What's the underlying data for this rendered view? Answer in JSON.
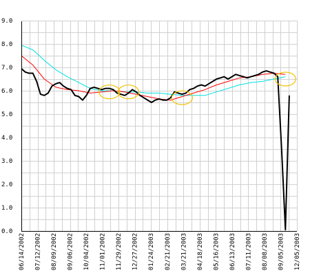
{
  "chart_data": {
    "type": "line",
    "title": "",
    "xlabel": "",
    "ylabel": "",
    "x_tick_labels": [
      "06/14/2002",
      "07/12/2002",
      "08/09/2002",
      "09/06/2002",
      "10/04/2002",
      "11/01/2002",
      "11/29/2002",
      "12/27/2002",
      "01/24/2003",
      "02/21/2003",
      "03/21/2003",
      "04/18/2003",
      "05/16/2003",
      "06/13/2003",
      "07/11/2003",
      "08/08/2003",
      "09/05/2003",
      "12/05/2003"
    ],
    "y_tick_labels": [
      "0.0",
      "1.0",
      "2.0",
      "3.0",
      "4.0",
      "5.0",
      "6.0",
      "7.0",
      "8.0",
      "9.0"
    ],
    "ylim": [
      0,
      9
    ],
    "xlim": [
      "06/14/2002",
      "10/31/2003"
    ],
    "grid": true,
    "legend": "none",
    "series": [
      {
        "color": "#000000",
        "points": [
          [
            "06/14/2002",
            6.95
          ],
          [
            "06/21/2002",
            6.8
          ],
          [
            "06/28/2002",
            6.75
          ],
          [
            "07/05/2002",
            6.75
          ],
          [
            "07/12/2002",
            6.4
          ],
          [
            "07/19/2002",
            5.85
          ],
          [
            "07/26/2002",
            5.8
          ],
          [
            "08/02/2002",
            5.9
          ],
          [
            "08/09/2002",
            6.2
          ],
          [
            "08/16/2002",
            6.3
          ],
          [
            "08/23/2002",
            6.35
          ],
          [
            "08/30/2002",
            6.2
          ],
          [
            "09/06/2002",
            6.1
          ],
          [
            "09/13/2002",
            6.05
          ],
          [
            "09/20/2002",
            5.8
          ],
          [
            "09/27/2002",
            5.75
          ],
          [
            "10/04/2002",
            5.6
          ],
          [
            "10/11/2002",
            5.8
          ],
          [
            "10/18/2002",
            6.1
          ],
          [
            "10/25/2002",
            6.15
          ],
          [
            "11/01/2002",
            6.1
          ],
          [
            "11/08/2002",
            6.05
          ],
          [
            "11/15/2002",
            6.1
          ],
          [
            "11/22/2002",
            6.1
          ],
          [
            "11/29/2002",
            6.05
          ],
          [
            "12/06/2002",
            5.9
          ],
          [
            "12/13/2002",
            5.85
          ],
          [
            "12/20/2002",
            5.8
          ],
          [
            "12/27/2002",
            5.9
          ],
          [
            "01/03/2003",
            6.05
          ],
          [
            "01/10/2003",
            5.95
          ],
          [
            "01/17/2003",
            5.8
          ],
          [
            "01/24/2003",
            5.7
          ],
          [
            "01/31/2003",
            5.6
          ],
          [
            "02/07/2003",
            5.5
          ],
          [
            "02/14/2003",
            5.6
          ],
          [
            "02/21/2003",
            5.65
          ],
          [
            "02/28/2003",
            5.6
          ],
          [
            "03/07/2003",
            5.6
          ],
          [
            "03/14/2003",
            5.7
          ],
          [
            "03/21/2003",
            5.95
          ],
          [
            "03/28/2003",
            5.9
          ],
          [
            "04/04/2003",
            5.85
          ],
          [
            "04/11/2003",
            5.9
          ],
          [
            "04/18/2003",
            6.05
          ],
          [
            "04/25/2003",
            6.1
          ],
          [
            "05/02/2003",
            6.2
          ],
          [
            "05/09/2003",
            6.25
          ],
          [
            "05/16/2003",
            6.2
          ],
          [
            "05/23/2003",
            6.3
          ],
          [
            "05/30/2003",
            6.4
          ],
          [
            "06/06/2003",
            6.5
          ],
          [
            "06/13/2003",
            6.55
          ],
          [
            "06/20/2003",
            6.6
          ],
          [
            "06/27/2003",
            6.5
          ],
          [
            "07/04/2003",
            6.6
          ],
          [
            "07/11/2003",
            6.7
          ],
          [
            "07/18/2003",
            6.65
          ],
          [
            "07/25/2003",
            6.6
          ],
          [
            "08/01/2003",
            6.55
          ],
          [
            "08/08/2003",
            6.6
          ],
          [
            "08/15/2003",
            6.65
          ],
          [
            "08/22/2003",
            6.7
          ],
          [
            "08/29/2003",
            6.8
          ],
          [
            "09/05/2003",
            6.85
          ],
          [
            "09/12/2003",
            6.8
          ],
          [
            "09/19/2003",
            6.75
          ],
          [
            "09/26/2003",
            6.6
          ],
          [
            "10/03/2003",
            3.5
          ],
          [
            "10/10/2003",
            0.05
          ],
          [
            "10/17/2003",
            5.8
          ]
        ]
      },
      {
        "color": "#ff0000",
        "points": [
          [
            "06/14/2002",
            7.5
          ],
          [
            "07/05/2002",
            7.1
          ],
          [
            "07/26/2002",
            6.5
          ],
          [
            "08/16/2002",
            6.15
          ],
          [
            "09/06/2002",
            6.05
          ],
          [
            "09/27/2002",
            6.0
          ],
          [
            "10/18/2002",
            5.9
          ],
          [
            "11/08/2002",
            5.95
          ],
          [
            "11/29/2002",
            6.0
          ],
          [
            "12/20/2002",
            5.95
          ],
          [
            "01/10/2003",
            5.85
          ],
          [
            "01/31/2003",
            5.75
          ],
          [
            "02/21/2003",
            5.65
          ],
          [
            "03/14/2003",
            5.6
          ],
          [
            "04/04/2003",
            5.75
          ],
          [
            "04/25/2003",
            5.9
          ],
          [
            "05/16/2003",
            6.05
          ],
          [
            "06/06/2003",
            6.25
          ],
          [
            "06/27/2003",
            6.4
          ],
          [
            "07/18/2003",
            6.55
          ],
          [
            "08/08/2003",
            6.6
          ],
          [
            "08/29/2003",
            6.7
          ],
          [
            "09/19/2003",
            6.75
          ],
          [
            "10/10/2003",
            6.7
          ]
        ]
      },
      {
        "color": "#00e0e0",
        "points": [
          [
            "06/14/2002",
            7.95
          ],
          [
            "07/05/2002",
            7.75
          ],
          [
            "07/26/2002",
            7.3
          ],
          [
            "08/16/2002",
            6.9
          ],
          [
            "09/06/2002",
            6.6
          ],
          [
            "09/27/2002",
            6.35
          ],
          [
            "10/18/2002",
            6.1
          ],
          [
            "11/08/2002",
            6.0
          ],
          [
            "11/29/2002",
            6.0
          ],
          [
            "12/20/2002",
            5.95
          ],
          [
            "01/10/2003",
            5.95
          ],
          [
            "01/31/2003",
            5.9
          ],
          [
            "02/21/2003",
            5.9
          ],
          [
            "03/14/2003",
            5.85
          ],
          [
            "04/04/2003",
            5.8
          ],
          [
            "04/25/2003",
            5.8
          ],
          [
            "05/16/2003",
            5.8
          ],
          [
            "06/06/2003",
            5.95
          ],
          [
            "06/27/2003",
            6.1
          ],
          [
            "07/18/2003",
            6.25
          ],
          [
            "08/08/2003",
            6.35
          ],
          [
            "08/29/2003",
            6.4
          ],
          [
            "09/19/2003",
            6.5
          ],
          [
            "10/10/2003",
            6.6
          ]
        ]
      }
    ],
    "highlights": [
      {
        "color": "#f0c000",
        "x": "11/22/2002",
        "y": 5.95
      },
      {
        "color": "#f0c000",
        "x": "12/27/2002",
        "y": 5.95
      },
      {
        "color": "#f0c000",
        "x": "04/04/2003",
        "y": 5.7
      },
      {
        "color": "#f0c000",
        "x": "10/10/2003",
        "y": 6.5
      }
    ]
  }
}
